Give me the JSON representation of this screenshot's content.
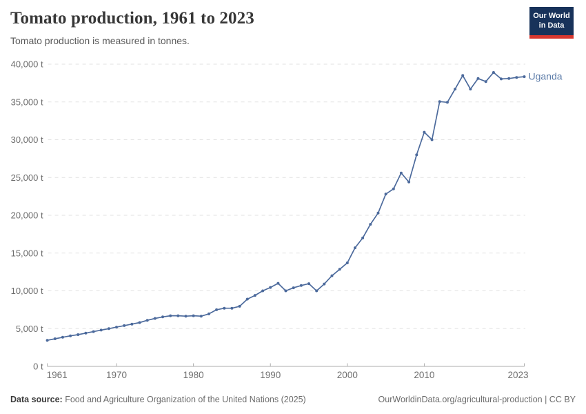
{
  "header": {
    "title": "Tomato production, 1961 to 2023",
    "subtitle": "Tomato production is measured in tonnes.",
    "logo": {
      "line1": "Our World",
      "line2": "in Data"
    }
  },
  "chart_data": {
    "type": "line",
    "title": "Tomato production, 1961 to 2023",
    "unit": "tonnes",
    "grid": "horizontal dashed",
    "legend_position": "end-of-line label",
    "x": [
      1961,
      1962,
      1963,
      1964,
      1965,
      1966,
      1967,
      1968,
      1969,
      1970,
      1971,
      1972,
      1973,
      1974,
      1975,
      1976,
      1977,
      1978,
      1979,
      1980,
      1981,
      1982,
      1983,
      1984,
      1985,
      1986,
      1987,
      1988,
      1989,
      1990,
      1991,
      1992,
      1993,
      1994,
      1995,
      1996,
      1997,
      1998,
      1999,
      2000,
      2001,
      2002,
      2003,
      2004,
      2005,
      2006,
      2007,
      2008,
      2009,
      2010,
      2011,
      2012,
      2013,
      2014,
      2015,
      2016,
      2017,
      2018,
      2019,
      2020,
      2021,
      2022,
      2023
    ],
    "series": [
      {
        "name": "Uganda",
        "color": "#4c6a9c",
        "values": [
          3450,
          3650,
          3850,
          4050,
          4200,
          4400,
          4600,
          4800,
          5000,
          5200,
          5400,
          5600,
          5800,
          6100,
          6350,
          6550,
          6700,
          6700,
          6650,
          6700,
          6650,
          6950,
          7500,
          7700,
          7700,
          7950,
          8900,
          9400,
          10000,
          10450,
          11000,
          10000,
          10400,
          10700,
          10950,
          10000,
          10900,
          12000,
          12850,
          13700,
          15700,
          17000,
          18800,
          20300,
          22800,
          23500,
          25600,
          24400,
          28000,
          31000,
          30000,
          35050,
          34950,
          36700,
          38500,
          36700,
          38100,
          37700,
          38900,
          38050,
          38100,
          38250,
          38350
        ]
      }
    ],
    "xlim": [
      1961,
      2023
    ],
    "ylim": [
      0,
      40000
    ],
    "xticks": [
      1961,
      1970,
      1980,
      1990,
      2000,
      2010,
      2023
    ],
    "xtick_labels": [
      "1961",
      "1970",
      "1980",
      "1990",
      "2000",
      "2010",
      "2023"
    ],
    "yticks": [
      0,
      5000,
      10000,
      15000,
      20000,
      25000,
      30000,
      35000,
      40000
    ],
    "ytick_labels": [
      "0 t",
      "5,000 t",
      "10,000 t",
      "15,000 t",
      "20,000 t",
      "25,000 t",
      "30,000 t",
      "35,000 t",
      "40,000 t"
    ],
    "end_label": "Uganda"
  },
  "footer": {
    "source_label": "Data source:",
    "source_text": " Food and Agriculture Organization of the United Nations (2025)",
    "credit": "OurWorldinData.org/agricultural-production | CC BY"
  },
  "colors": {
    "line": "#4c6a9c",
    "end_label": "#5b7ba8",
    "gridline": "#e2e2e2",
    "axis": "#adadad",
    "tick_label": "#6e6e6e",
    "title": "#383838",
    "subtitle": "#5a5a5a",
    "logo_bg": "#18325a",
    "logo_strip": "#d8372f"
  }
}
